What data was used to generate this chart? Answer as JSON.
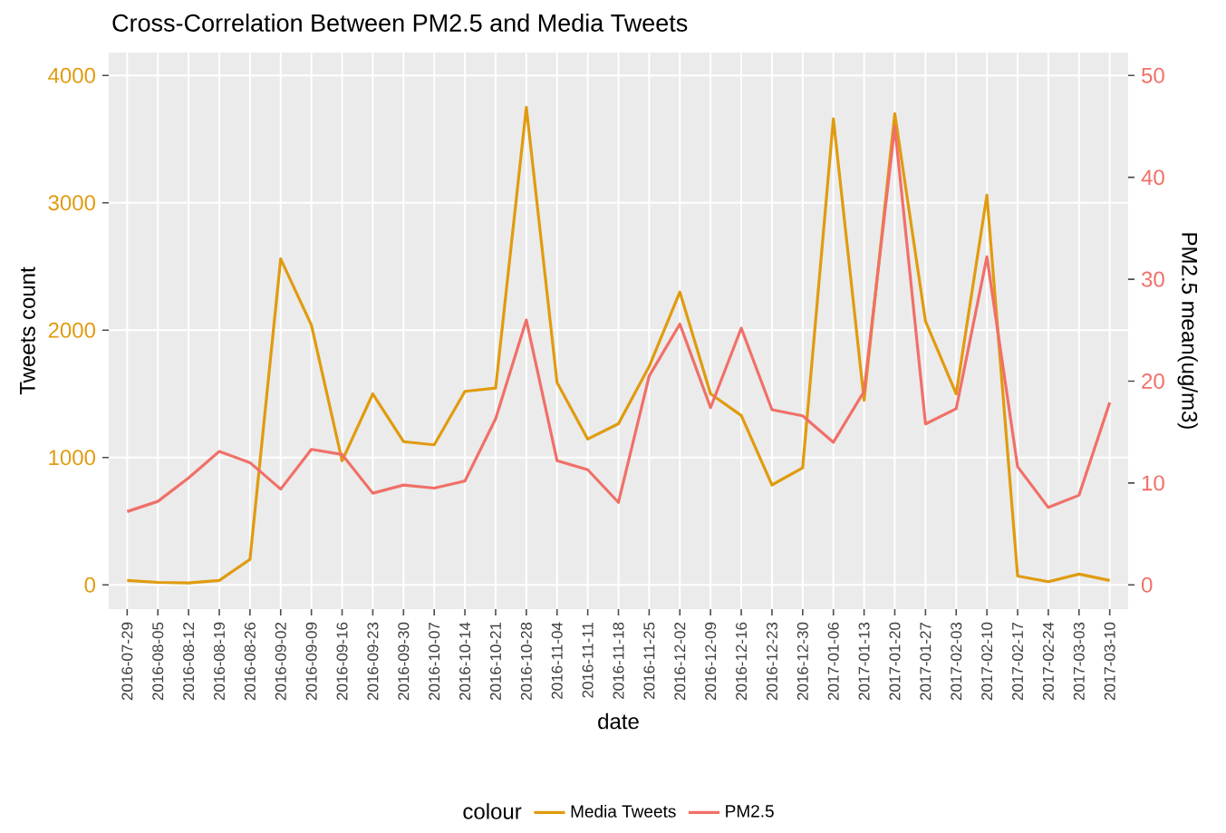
{
  "chart_data": {
    "type": "line",
    "title": "Cross-Correlation Between PM2.5 and Media Tweets",
    "xlabel": "date",
    "ylabel": "Tweets count",
    "y2label": "PM2.5 mean(ug/m3)",
    "legend_title": "colour",
    "categories": [
      "2016-07-29",
      "2016-08-05",
      "2016-08-12",
      "2016-08-19",
      "2016-08-26",
      "2016-09-02",
      "2016-09-09",
      "2016-09-16",
      "2016-09-23",
      "2016-09-30",
      "2016-10-07",
      "2016-10-14",
      "2016-10-21",
      "2016-10-28",
      "2016-11-04",
      "2016-11-11",
      "2016-11-18",
      "2016-11-25",
      "2016-12-02",
      "2016-12-09",
      "2016-12-16",
      "2016-12-23",
      "2016-12-30",
      "2017-01-06",
      "2017-01-13",
      "2017-01-20",
      "2017-01-27",
      "2017-02-03",
      "2017-02-10",
      "2017-02-17",
      "2017-02-24",
      "2017-03-03",
      "2017-03-10"
    ],
    "series": [
      {
        "name": "Media Tweets",
        "color": "#e09b0f",
        "values": [
          35,
          20,
          15,
          35,
          200,
          2560,
          2040,
          975,
          1500,
          1125,
          1100,
          1520,
          1545,
          3750,
          1590,
          1145,
          1265,
          1715,
          2300,
          1500,
          1330,
          785,
          920,
          3660,
          1450,
          3700,
          2070,
          1500,
          3060,
          70,
          25,
          85,
          35
        ]
      },
      {
        "name": "PM2.5",
        "color": "#f07068",
        "axis": "y2",
        "values": [
          7.2,
          8.2,
          10.5,
          13.1,
          12,
          9.4,
          13.3,
          12.8,
          9,
          9.8,
          9.5,
          10.2,
          16.3,
          26,
          12.2,
          11.3,
          8.1,
          20.5,
          25.6,
          17.4,
          25.2,
          17.2,
          16.6,
          14,
          19,
          45,
          15.8,
          17.3,
          32.2,
          11.6,
          7.6,
          8.8,
          17.9
        ]
      }
    ],
    "ylim": [
      -190,
      4180
    ],
    "yticks": [
      0,
      1000,
      2000,
      3000,
      4000
    ],
    "y2lim": [
      -2.375,
      52.25
    ],
    "y2ticks": [
      0,
      10,
      20,
      30,
      40,
      50
    ],
    "grid": true,
    "legend": "bottom"
  }
}
